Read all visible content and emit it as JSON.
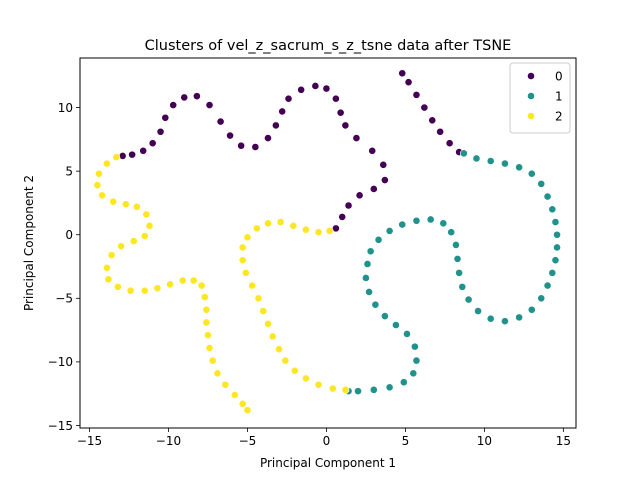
{
  "chart_data": {
    "type": "scatter",
    "title": "Clusters of vel_z_sacrum_s_z_tsne data after TSNE",
    "xlabel": "Principal Component 1",
    "ylabel": "Principal Component 2",
    "xlim": [
      -15.6,
      15.8
    ],
    "ylim": [
      -15.2,
      13.9
    ],
    "xticks": [
      -15,
      -10,
      -5,
      0,
      5,
      10,
      15
    ],
    "yticks": [
      -15,
      -10,
      -5,
      0,
      5,
      10
    ],
    "grid": false,
    "legend": {
      "placement": "top-right",
      "title": ""
    },
    "series": [
      {
        "name": "0",
        "color": "#440154",
        "points": [
          [
            4.8,
            12.7
          ],
          [
            5.2,
            12.0
          ],
          [
            5.7,
            11.0
          ],
          [
            6.2,
            10.0
          ],
          [
            6.7,
            9.0
          ],
          [
            7.2,
            8.1
          ],
          [
            7.8,
            7.2
          ],
          [
            8.4,
            6.5
          ],
          [
            0.6,
            0.5
          ],
          [
            1.0,
            1.4
          ],
          [
            1.4,
            2.3
          ],
          [
            2.1,
            3.1
          ],
          [
            3.0,
            3.6
          ],
          [
            3.7,
            4.3
          ],
          [
            3.6,
            5.5
          ],
          [
            2.9,
            6.6
          ],
          [
            1.9,
            7.6
          ],
          [
            1.2,
            8.6
          ],
          [
            0.9,
            9.6
          ],
          [
            0.6,
            10.7
          ],
          [
            0.0,
            11.5
          ],
          [
            -0.7,
            11.7
          ],
          [
            -1.6,
            11.4
          ],
          [
            -2.4,
            10.7
          ],
          [
            -2.8,
            9.7
          ],
          [
            -3.2,
            8.6
          ],
          [
            -3.7,
            7.6
          ],
          [
            -4.5,
            6.9
          ],
          [
            -5.4,
            7.0
          ],
          [
            -6.1,
            7.8
          ],
          [
            -6.7,
            8.9
          ],
          [
            -7.4,
            10.2
          ],
          [
            -8.2,
            10.9
          ],
          [
            -9.0,
            10.8
          ],
          [
            -9.7,
            10.2
          ],
          [
            -10.2,
            9.2
          ],
          [
            -10.5,
            8.1
          ],
          [
            -11.0,
            7.2
          ],
          [
            -11.6,
            6.6
          ],
          [
            -12.3,
            6.3
          ],
          [
            -12.9,
            6.2
          ]
        ]
      },
      {
        "name": "1",
        "color": "#21918c",
        "points": [
          [
            8.7,
            6.4
          ],
          [
            9.5,
            6.0
          ],
          [
            10.4,
            5.8
          ],
          [
            11.3,
            5.6
          ],
          [
            12.2,
            5.3
          ],
          [
            13.0,
            4.8
          ],
          [
            13.6,
            4.0
          ],
          [
            14.0,
            3.0
          ],
          [
            14.3,
            2.0
          ],
          [
            14.5,
            1.0
          ],
          [
            14.6,
            0.0
          ],
          [
            14.6,
            -1.0
          ],
          [
            14.5,
            -2.0
          ],
          [
            14.3,
            -3.0
          ],
          [
            14.0,
            -4.0
          ],
          [
            13.6,
            -5.0
          ],
          [
            13.0,
            -5.9
          ],
          [
            12.2,
            -6.5
          ],
          [
            11.3,
            -6.8
          ],
          [
            10.4,
            -6.6
          ],
          [
            9.6,
            -6.0
          ],
          [
            9.0,
            -5.1
          ],
          [
            8.6,
            -4.1
          ],
          [
            8.4,
            -3.0
          ],
          [
            8.3,
            -1.9
          ],
          [
            8.2,
            -0.8
          ],
          [
            7.9,
            0.2
          ],
          [
            7.4,
            0.9
          ],
          [
            6.6,
            1.2
          ],
          [
            5.7,
            1.1
          ],
          [
            4.8,
            0.8
          ],
          [
            4.0,
            0.3
          ],
          [
            3.3,
            -0.4
          ],
          [
            2.8,
            -1.3
          ],
          [
            2.6,
            -2.3
          ],
          [
            2.5,
            -3.4
          ],
          [
            2.7,
            -4.5
          ],
          [
            3.1,
            -5.5
          ],
          [
            3.7,
            -6.4
          ],
          [
            4.4,
            -7.1
          ],
          [
            5.1,
            -7.8
          ],
          [
            5.6,
            -8.8
          ],
          [
            5.7,
            -9.9
          ],
          [
            5.5,
            -10.9
          ],
          [
            4.9,
            -11.6
          ],
          [
            4.0,
            -12.0
          ],
          [
            3.0,
            -12.2
          ],
          [
            2.0,
            -12.3
          ],
          [
            1.4,
            -12.3
          ]
        ]
      },
      {
        "name": "2",
        "color": "#fde725",
        "points": [
          [
            -13.3,
            6.1
          ],
          [
            -13.9,
            5.6
          ],
          [
            -14.4,
            4.8
          ],
          [
            -14.5,
            3.9
          ],
          [
            -14.2,
            3.1
          ],
          [
            -13.5,
            2.6
          ],
          [
            -12.7,
            2.4
          ],
          [
            -12.0,
            2.2
          ],
          [
            -11.4,
            1.6
          ],
          [
            -11.2,
            0.7
          ],
          [
            -11.5,
            -0.1
          ],
          [
            -12.2,
            -0.5
          ],
          [
            -13.0,
            -0.9
          ],
          [
            -13.6,
            -1.6
          ],
          [
            -13.9,
            -2.6
          ],
          [
            -13.8,
            -3.5
          ],
          [
            -13.2,
            -4.1
          ],
          [
            -12.4,
            -4.4
          ],
          [
            -11.5,
            -4.4
          ],
          [
            -10.7,
            -4.2
          ],
          [
            -9.9,
            -3.9
          ],
          [
            -9.1,
            -3.6
          ],
          [
            -8.4,
            -3.6
          ],
          [
            -7.9,
            -4.0
          ],
          [
            -7.7,
            -4.9
          ],
          [
            -7.6,
            -5.9
          ],
          [
            -7.6,
            -6.9
          ],
          [
            -7.5,
            -7.9
          ],
          [
            -7.4,
            -8.9
          ],
          [
            -7.2,
            -9.9
          ],
          [
            -6.9,
            -10.9
          ],
          [
            -6.4,
            -11.8
          ],
          [
            -5.8,
            -12.6
          ],
          [
            -5.3,
            -13.3
          ],
          [
            -5.0,
            -13.8
          ],
          [
            1.2,
            -12.2
          ],
          [
            0.4,
            -12.1
          ],
          [
            -0.5,
            -11.8
          ],
          [
            -1.3,
            -11.3
          ],
          [
            -2.0,
            -10.7
          ],
          [
            -2.6,
            -9.9
          ],
          [
            -3.0,
            -9.0
          ],
          [
            -3.4,
            -8.0
          ],
          [
            -3.7,
            -7.0
          ],
          [
            -4.0,
            -6.0
          ],
          [
            -4.3,
            -5.0
          ],
          [
            -4.7,
            -4.0
          ],
          [
            -5.1,
            -3.0
          ],
          [
            -5.3,
            -2.0
          ],
          [
            -5.3,
            -1.0
          ],
          [
            -5.0,
            -0.2
          ],
          [
            -4.4,
            0.5
          ],
          [
            -3.7,
            0.9
          ],
          [
            -2.9,
            1.0
          ],
          [
            -2.1,
            0.7
          ],
          [
            -1.3,
            0.4
          ],
          [
            -0.5,
            0.2
          ],
          [
            0.2,
            0.3
          ]
        ]
      }
    ]
  }
}
